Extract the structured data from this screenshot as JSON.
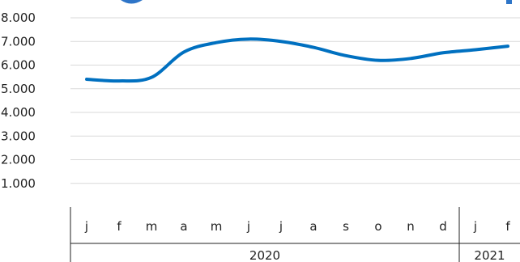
{
  "chart_data": {
    "type": "line",
    "x": [
      "j",
      "f",
      "m",
      "a",
      "m",
      "j",
      "j",
      "a",
      "s",
      "o",
      "n",
      "d",
      "j",
      "f"
    ],
    "years": [
      {
        "label": "2020",
        "start": 0,
        "end": 11
      },
      {
        "label": "2021",
        "start": 12,
        "end": 13
      }
    ],
    "series": [
      {
        "values": [
          5400,
          5330,
          5480,
          6550,
          6950,
          7100,
          7000,
          6750,
          6400,
          6200,
          6280,
          6520,
          6650,
          6800
        ],
        "color": "#0070c0"
      }
    ],
    "ylim": [
      0,
      8000
    ],
    "yticks": [
      {
        "value": 1000,
        "label": "1.000"
      },
      {
        "value": 2000,
        "label": "2.000"
      },
      {
        "value": 3000,
        "label": "3.000"
      },
      {
        "value": 4000,
        "label": "4.000"
      },
      {
        "value": 5000,
        "label": "5.000"
      },
      {
        "value": 6000,
        "label": "6.000"
      },
      {
        "value": 7000,
        "label": "7.000"
      },
      {
        "value": 8000,
        "label": "8.000"
      }
    ],
    "grid": true,
    "title_color": "#2e75c8"
  }
}
